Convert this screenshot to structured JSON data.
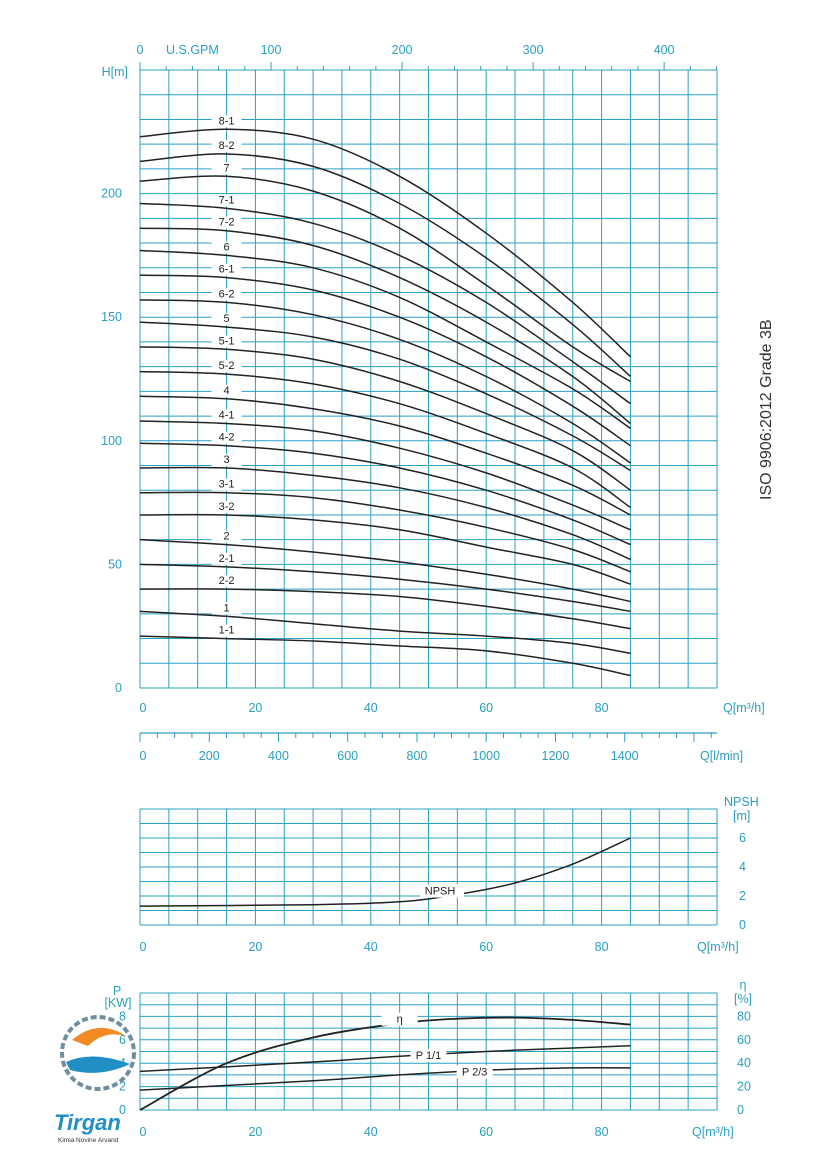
{
  "standard_label": "ISO 9906:2012 Grade 3B",
  "brand": {
    "name": "Tirgan",
    "tagline": "Kimia Novine Arvand"
  },
  "colors": {
    "grid": "#2a9fc4",
    "curve": "#222222",
    "background": "#ffffff"
  },
  "chart_data": [
    {
      "type": "line",
      "axes": {
        "x": {
          "label": "Q[m³/h]",
          "range": [
            0,
            100
          ],
          "ticks": [
            0,
            20,
            40,
            60,
            80
          ]
        },
        "y": {
          "label": "H[m]",
          "range": [
            0,
            250
          ],
          "ticks": [
            0,
            50,
            100,
            150,
            200
          ]
        },
        "x2_top": {
          "label": "U.S.GPM",
          "ticks": [
            0,
            100,
            200,
            300,
            400
          ]
        },
        "x3_bottom": {
          "label": "Q[l/min]",
          "ticks": [
            0,
            200,
            400,
            600,
            800,
            1000,
            1200,
            1400
          ]
        }
      },
      "grid": true,
      "series": [
        {
          "name": "8-1",
          "x": [
            0,
            15,
            30,
            45,
            60,
            75,
            85
          ],
          "y": [
            223,
            226,
            222,
            207,
            184,
            156,
            134
          ]
        },
        {
          "name": "8-2",
          "x": [
            0,
            15,
            30,
            45,
            60,
            75,
            85
          ],
          "y": [
            213,
            216,
            211,
            196,
            174,
            147,
            126
          ]
        },
        {
          "name": "7",
          "x": [
            0,
            15,
            30,
            45,
            60,
            75,
            85
          ],
          "y": [
            205,
            207,
            201,
            186,
            163,
            138,
            124
          ]
        },
        {
          "name": "7-1",
          "x": [
            0,
            15,
            30,
            45,
            60,
            75,
            85
          ],
          "y": [
            196,
            194,
            188,
            175,
            156,
            132,
            115
          ]
        },
        {
          "name": "7-2",
          "x": [
            0,
            15,
            30,
            45,
            60,
            75,
            85
          ],
          "y": [
            186,
            185,
            179,
            166,
            148,
            126,
            107
          ]
        },
        {
          "name": "6",
          "x": [
            0,
            15,
            30,
            45,
            60,
            75,
            85
          ],
          "y": [
            177,
            175,
            170,
            158,
            140,
            121,
            105
          ]
        },
        {
          "name": "6-1",
          "x": [
            0,
            15,
            30,
            45,
            60,
            75,
            85
          ],
          "y": [
            167,
            166,
            161,
            150,
            134,
            114,
            98
          ]
        },
        {
          "name": "6-2",
          "x": [
            0,
            15,
            30,
            45,
            60,
            75,
            85
          ],
          "y": [
            157,
            156,
            151,
            141,
            126,
            107,
            91
          ]
        },
        {
          "name": "5",
          "x": [
            0,
            15,
            30,
            45,
            60,
            75,
            85
          ],
          "y": [
            148,
            146,
            142,
            133,
            119,
            102,
            88
          ]
        },
        {
          "name": "5-1",
          "x": [
            0,
            15,
            30,
            45,
            60,
            75,
            85
          ],
          "y": [
            138,
            137,
            133,
            124,
            111,
            96,
            80
          ]
        },
        {
          "name": "5-2",
          "x": [
            0,
            15,
            30,
            45,
            60,
            75,
            85
          ],
          "y": [
            128,
            127,
            123,
            115,
            103,
            89,
            73
          ]
        },
        {
          "name": "4",
          "x": [
            0,
            15,
            30,
            45,
            60,
            75,
            85
          ],
          "y": [
            118,
            117,
            113,
            106,
            95,
            82,
            70
          ]
        },
        {
          "name": "4-1",
          "x": [
            0,
            15,
            30,
            45,
            60,
            75,
            85
          ],
          "y": [
            108,
            107,
            104,
            97,
            87,
            74,
            64
          ]
        },
        {
          "name": "4-2",
          "x": [
            0,
            15,
            30,
            45,
            60,
            75,
            85
          ],
          "y": [
            99,
            98,
            95,
            89,
            80,
            68,
            58
          ]
        },
        {
          "name": "3",
          "x": [
            0,
            15,
            30,
            45,
            60,
            75,
            85
          ],
          "y": [
            89,
            89,
            86,
            81,
            73,
            62,
            52
          ]
        },
        {
          "name": "3-1",
          "x": [
            0,
            15,
            30,
            45,
            60,
            75,
            85
          ],
          "y": [
            79,
            79,
            77,
            72,
            65,
            56,
            47
          ]
        },
        {
          "name": "3-2",
          "x": [
            0,
            15,
            30,
            45,
            60,
            75,
            85
          ],
          "y": [
            70,
            70,
            68,
            64,
            57,
            50,
            42
          ]
        },
        {
          "name": "2",
          "x": [
            0,
            15,
            30,
            45,
            60,
            75,
            85
          ],
          "y": [
            60,
            58,
            55,
            51,
            46,
            40,
            35
          ]
        },
        {
          "name": "2-1",
          "x": [
            0,
            15,
            30,
            45,
            60,
            75,
            85
          ],
          "y": [
            50,
            49,
            47,
            44,
            40,
            35,
            31
          ]
        },
        {
          "name": "2-2",
          "x": [
            0,
            15,
            30,
            45,
            60,
            75,
            85
          ],
          "y": [
            40,
            40,
            39,
            37,
            33,
            28,
            24
          ]
        },
        {
          "name": "1",
          "x": [
            0,
            15,
            30,
            45,
            60,
            75,
            85
          ],
          "y": [
            31,
            29,
            26,
            23,
            21,
            18,
            14
          ]
        },
        {
          "name": "1-1",
          "x": [
            0,
            15,
            30,
            45,
            60,
            75,
            85
          ],
          "y": [
            21,
            20,
            19,
            17,
            15,
            10,
            5
          ]
        }
      ]
    },
    {
      "type": "line",
      "axes": {
        "x": {
          "label": "Q[m³/h]",
          "range": [
            0,
            100
          ],
          "ticks": [
            0,
            20,
            40,
            60,
            80
          ]
        },
        "y": {
          "label": "NPSH [m]",
          "range": [
            0,
            7
          ],
          "ticks": [
            0,
            2,
            4,
            6
          ]
        }
      },
      "grid": true,
      "series": [
        {
          "name": "NPSH",
          "x": [
            0,
            30,
            45,
            55,
            65,
            75,
            85
          ],
          "y": [
            1.3,
            1.4,
            1.6,
            2.1,
            2.9,
            4.2,
            6.0
          ]
        }
      ]
    },
    {
      "type": "line",
      "axes": {
        "x": {
          "label": "Q[m³/h]",
          "range": [
            0,
            100
          ],
          "ticks": [
            0,
            20,
            40,
            60,
            80
          ]
        },
        "y_left": {
          "label": "P [KW]",
          "range": [
            0,
            10
          ],
          "ticks": [
            0,
            2,
            4,
            6,
            8
          ]
        },
        "y_right": {
          "label": "η [%]",
          "range": [
            0,
            100
          ],
          "ticks": [
            0,
            20,
            40,
            60,
            80
          ]
        }
      },
      "grid": true,
      "series": [
        {
          "name": "η",
          "axis": "right",
          "x": [
            0,
            15,
            30,
            45,
            55,
            65,
            75,
            85
          ],
          "y": [
            0,
            40,
            62,
            74,
            78,
            79,
            77,
            73
          ]
        },
        {
          "name": "P 1/1",
          "axis": "left",
          "x": [
            0,
            30,
            45,
            60,
            75,
            85
          ],
          "y": [
            3.3,
            4.1,
            4.6,
            5.0,
            5.3,
            5.5
          ]
        },
        {
          "name": "P 2/3",
          "axis": "left",
          "x": [
            0,
            30,
            45,
            60,
            75,
            85
          ],
          "y": [
            1.7,
            2.5,
            3.0,
            3.4,
            3.6,
            3.6
          ]
        }
      ]
    }
  ]
}
